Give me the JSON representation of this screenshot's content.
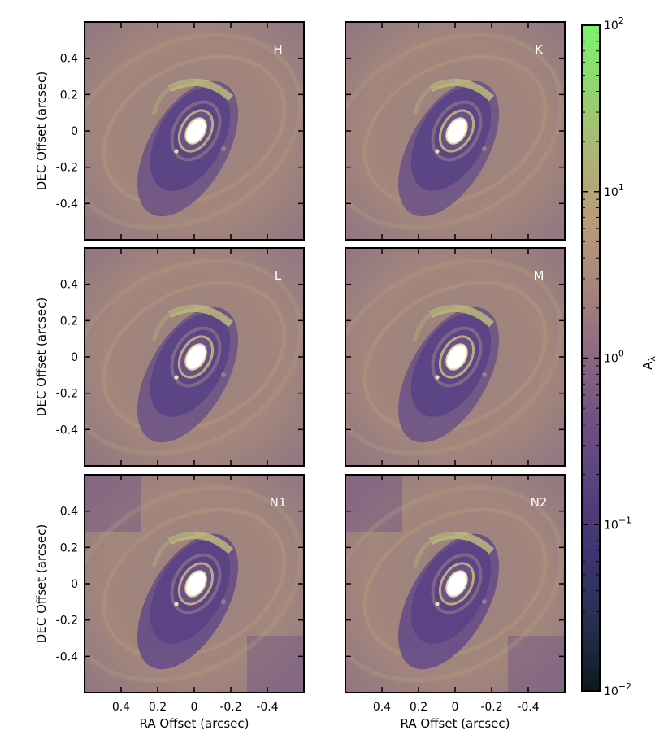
{
  "chart_data": {
    "type": "heatmap",
    "title": "",
    "xlabel": "RA Offset (arcsec)",
    "ylabel": "DEC Offset (arcsec)",
    "xlim": [
      0.6,
      -0.6
    ],
    "ylim": [
      -0.6,
      0.6
    ],
    "x_axis_inverted": true,
    "x_tick_labels": [
      "0.4",
      "0.2",
      "0",
      "-0.2",
      "-0.4"
    ],
    "y_tick_labels": [
      "0.4",
      "0.2",
      "0",
      "-0.2",
      "-0.4"
    ],
    "panels": [
      {
        "label": "H"
      },
      {
        "label": "K"
      },
      {
        "label": "L"
      },
      {
        "label": "M"
      },
      {
        "label": "N1"
      },
      {
        "label": "N2"
      }
    ],
    "colorbar": {
      "label": "Aλ",
      "label_base": "A",
      "label_sub": "λ",
      "scale": "log",
      "range": [
        0.01,
        100
      ],
      "ticks": [
        {
          "value": 100,
          "base": "10",
          "exp": "2"
        },
        {
          "value": 10,
          "base": "10",
          "exp": "1"
        },
        {
          "value": 1,
          "base": "10",
          "exp": "0"
        },
        {
          "value": 0.1,
          "base": "10",
          "exp": "−1"
        },
        {
          "value": 0.01,
          "base": "10",
          "exp": "−2"
        }
      ],
      "colormap": [
        "#0b1a1f",
        "#24304f",
        "#3d3370",
        "#56407e",
        "#6f4f82",
        "#8b6680",
        "#a7837c",
        "#b89a78",
        "#aeb276",
        "#92d36f",
        "#7ef36c"
      ]
    }
  }
}
